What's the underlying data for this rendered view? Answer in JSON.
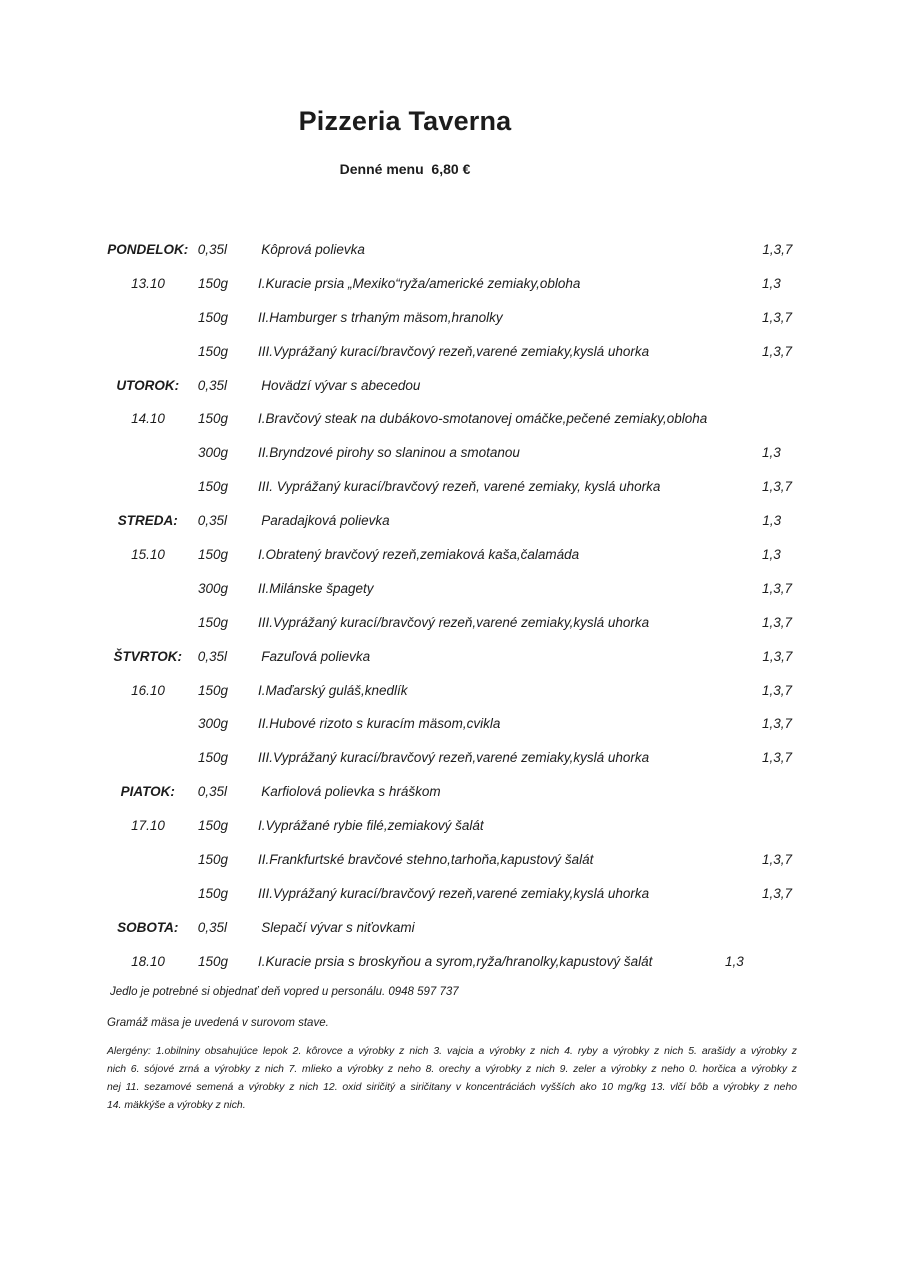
{
  "header": {
    "title": "Pizzeria Taverna",
    "subtitle": "Denné menu  6,80 €"
  },
  "days": [
    {
      "label": "PONDELOK:",
      "date": "13.10",
      "rows": [
        {
          "portion": "0,35l",
          "dish": "Kôprová polievka",
          "allergens": "1,3,7"
        },
        {
          "portion": "150g",
          "dish": "I.Kuracie prsia „Mexiko“ryža/americké zemiaky,obloha",
          "allergens": "1,3"
        },
        {
          "portion": "150g",
          "dish": "II.Hamburger s trhaným mäsom,hranolky",
          "allergens": "1,3,7"
        },
        {
          "portion": "150g",
          "dish": "III.Vyprážaný kurací/bravčový rezeň,varené zemiaky,kyslá uhorka",
          "allergens": "1,3,7"
        }
      ]
    },
    {
      "label": "UTOROK:",
      "date": "14.10",
      "rows": [
        {
          "portion": "0,35l",
          "dish": "Hovädzí vývar s abecedou",
          "allergens": ""
        },
        {
          "portion": "150g",
          "dish": "I.Bravčový steak na dubákovo-smotanovej omáčke,pečené zemiaky,obloha",
          "allergens": ""
        },
        {
          "portion": "300g",
          "dish": "II.Bryndzové pirohy so slaninou a smotanou",
          "allergens": "1,3"
        },
        {
          "portion": "150g",
          "dish": "III. Vyprážaný kurací/bravčový rezeň, varené zemiaky, kyslá uhorka",
          "allergens": "1,3,7"
        }
      ]
    },
    {
      "label": "STREDA:",
      "date": "15.10",
      "rows": [
        {
          "portion": "0,35l",
          "dish": "Paradajková polievka",
          "allergens": "1,3"
        },
        {
          "portion": "150g",
          "dish": "I.Obratený bravčový rezeň,zemiaková kaša,čalamáda",
          "allergens": "1,3"
        },
        {
          "portion": "300g",
          "dish": "II.Milánske špagety",
          "allergens": "1,3,7"
        },
        {
          "portion": "150g",
          "dish": "III.Vyprážaný kurací/bravčový rezeň,varené zemiaky,kyslá uhorka",
          "allergens": "1,3,7"
        }
      ]
    },
    {
      "label": "ŠTVRTOK:",
      "date": "16.10",
      "rows": [
        {
          "portion": "0,35l",
          "dish": "Fazuľová polievka",
          "allergens": "1,3,7"
        },
        {
          "portion": "150g",
          "dish": "I.Maďarský guláš,knedlík",
          "allergens": "1,3,7"
        },
        {
          "portion": "300g",
          "dish": "II.Hubové rizoto s kuracím mäsom,cvikla",
          "allergens": "1,3,7"
        },
        {
          "portion": "150g",
          "dish": "III.Vyprážaný kurací/bravčový rezeň,varené zemiaky,kyslá uhorka",
          "allergens": "1,3,7"
        }
      ]
    },
    {
      "label": "PIATOK:",
      "date": "17.10",
      "rows": [
        {
          "portion": "0,35l",
          "dish": "Karfiolová polievka s hráškom",
          "allergens": ""
        },
        {
          "portion": "150g",
          "dish": "I.Vyprážané rybie filé,zemiakový šalát",
          "allergens": ""
        },
        {
          "portion": "150g",
          "dish": "II.Frankfurtské bravčové stehno,tarhoňa,kapustový šalát",
          "allergens": "1,3,7"
        },
        {
          "portion": "150g",
          "dish": "III.Vyprážaný kurací/bravčový rezeň,varené zemiaky,kyslá uhorka",
          "allergens": "1,3,7"
        }
      ]
    },
    {
      "label": "SOBOTA:",
      "date": "18.10",
      "rows": [
        {
          "portion": "0,35l",
          "dish": "Slepačí vývar s niťovkami",
          "allergens": ""
        },
        {
          "portion": "150g",
          "dish": "I.Kuracie prsia s broskyňou a syrom,ryža/hranolky,kapustový šalát",
          "allergens": "1,3"
        }
      ]
    }
  ],
  "notes": {
    "order": "Jedlo je potrebné si objednať deň vopred u personálu. 0948 597 737",
    "weight": "Gramáž mäsa je uvedená v surovom stave.",
    "allergens_lines": [
      "Alergény: 1.obilniny obsahujúce lepok  2. kôrovce a výrobky z nich  3. vajcia a výrobky z nich  4. ryby a výrobky z nich  5. arašidy a výrobky z",
      "nich  6. sójové zrná a výrobky z nich  7. mlieko a výrobky z neho  8. orechy a výrobky z nich  9. zeler a výrobky z neho 0. horčica a výrobky z",
      "nej  11. sezamové semená a výrobky z nich  12. oxid siričitý a siričitany v koncentráciách vyšších ako 10 mg/kg   13. vlčí bôb a výrobky z neho",
      "14. mäkkýše a výrobky z nich."
    ]
  },
  "colors": {
    "page_background": "#ffffff",
    "text": "#1c1c1c"
  }
}
